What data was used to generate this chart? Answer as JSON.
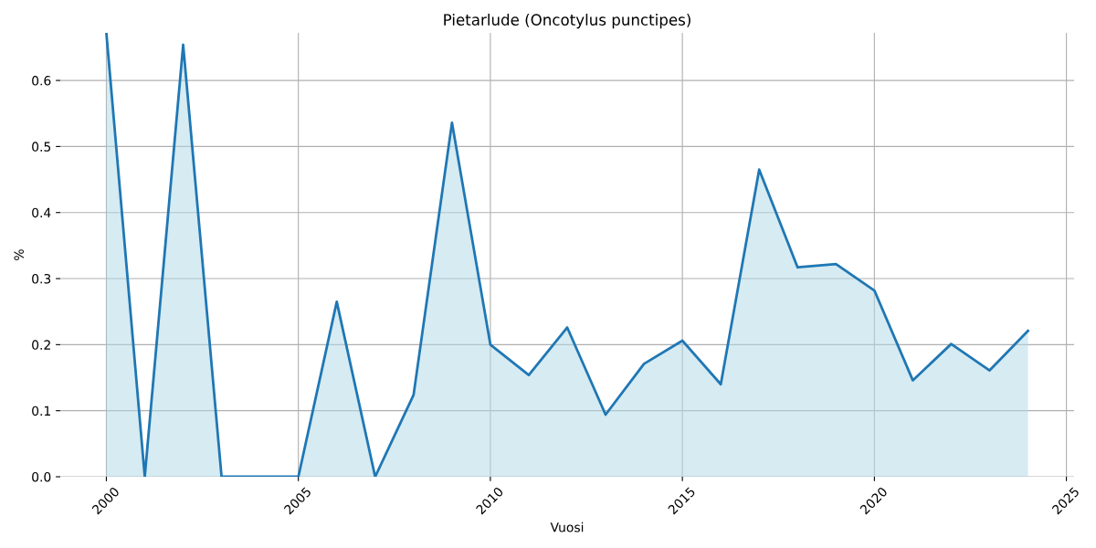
{
  "chart_data": {
    "type": "area",
    "title": "Pietarlude (Oncotylus punctipes)",
    "xlabel": "Vuosi",
    "ylabel": "%",
    "x": [
      2000,
      2001,
      2002,
      2003,
      2004,
      2005,
      2006,
      2007,
      2008,
      2009,
      2010,
      2011,
      2012,
      2013,
      2014,
      2015,
      2016,
      2017,
      2018,
      2019,
      2020,
      2021,
      2022,
      2023,
      2024
    ],
    "series": [
      {
        "color": "#1f77b4",
        "values": [
          0.672,
          0,
          0.654,
          0,
          0,
          0,
          0.265,
          0,
          0.124,
          0.536,
          0.2,
          0.154,
          0.226,
          0.094,
          0.171,
          0.206,
          0.14,
          0.465,
          0.317,
          0.322,
          0.282,
          0.146,
          0.201,
          0.161,
          0.221
        ]
      }
    ],
    "xlim": [
      1998.8,
      2025.2
    ],
    "xticks": [
      2000,
      2005,
      2010,
      2015,
      2020,
      2025
    ],
    "ylim": [
      0,
      0.672
    ],
    "yticks": [
      {
        "value": 0,
        "label": "0.0"
      },
      0.1,
      0.2,
      0.3,
      0.4,
      0.5,
      0.6
    ],
    "grid": true
  }
}
